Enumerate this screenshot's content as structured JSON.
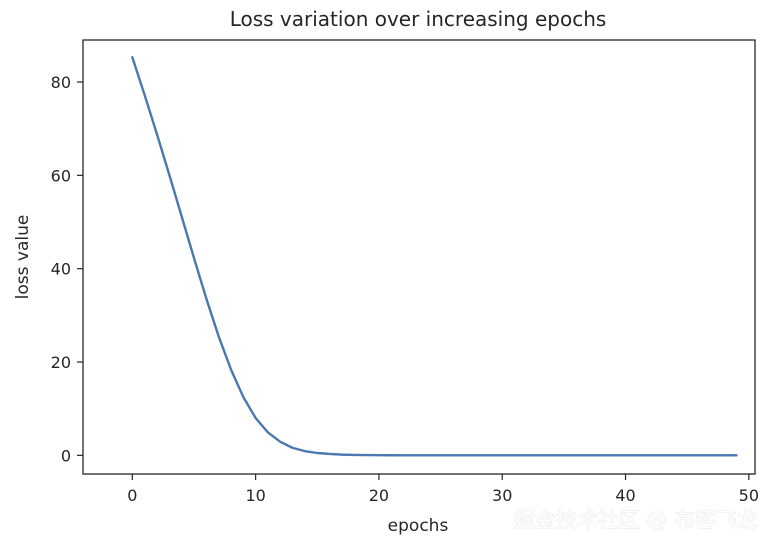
{
  "chart_data": {
    "type": "line",
    "title": "Loss variation over increasing epochs",
    "xlabel": "epochs",
    "ylabel": "loss value",
    "xlim": [
      -4,
      50.5
    ],
    "ylim": [
      -4,
      89
    ],
    "xticks": [
      0,
      10,
      20,
      30,
      40,
      50
    ],
    "yticks": [
      0,
      20,
      40,
      60,
      80
    ],
    "grid": false,
    "legend": "none",
    "series": [
      {
        "color": "#4c78b0",
        "x": [
          0,
          1,
          2,
          3,
          4,
          5,
          6,
          7,
          8,
          9,
          10,
          11,
          12,
          13,
          14,
          15,
          16,
          17,
          18,
          19,
          20,
          21,
          22,
          23,
          24,
          25,
          26,
          27,
          28,
          29,
          30,
          31,
          32,
          33,
          34,
          35,
          36,
          37,
          38,
          39,
          40,
          41,
          42,
          43,
          44,
          45,
          46,
          47,
          48,
          49
        ],
        "y": [
          85.3,
          77.2,
          68.8,
          60.1,
          51.2,
          42.3,
          33.6,
          25.5,
          18.4,
          12.5,
          8.0,
          4.9,
          2.9,
          1.6,
          0.9,
          0.5,
          0.3,
          0.15,
          0.08,
          0.05,
          0.03,
          0.02,
          0.01,
          0.01,
          0.01,
          0.01,
          0.01,
          0.01,
          0.01,
          0.01,
          0.01,
          0.01,
          0.01,
          0.01,
          0.01,
          0.01,
          0.01,
          0.01,
          0.01,
          0.01,
          0.01,
          0.01,
          0.01,
          0.01,
          0.01,
          0.01,
          0.01,
          0.01,
          0.01,
          0.01
        ]
      }
    ]
  },
  "watermark": "掘金技术社区 @ 布客飞龙"
}
